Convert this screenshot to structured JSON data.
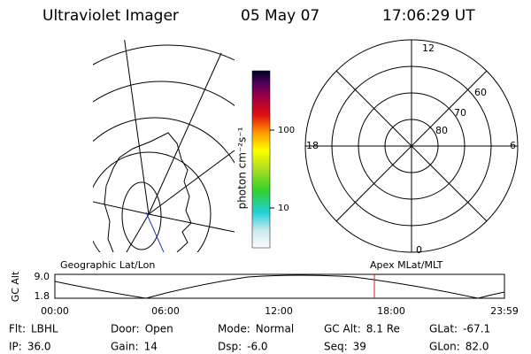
{
  "header": {
    "instrument": "Ultraviolet Imager",
    "date": "05 May 07",
    "time": "17:06:29 UT"
  },
  "colorbar": {
    "label": "photon cm⁻²s⁻¹",
    "ticks": [
      "100",
      "10"
    ]
  },
  "polar": {
    "labels": {
      "top": "12",
      "bottom": "0",
      "left": "18",
      "right": "6"
    },
    "rings": [
      "60",
      "70",
      "80"
    ]
  },
  "timeline": {
    "left_title": "Geographic Lat/Lon",
    "right_title": "Apex MLat/MLT",
    "y_label": "GC Alt",
    "y_ticks": [
      "9.0",
      "1.8"
    ],
    "x_ticks": [
      "00:00",
      "06:00",
      "12:00",
      "18:00",
      "23:59"
    ]
  },
  "info": [
    [
      {
        "label": "Flt:",
        "value": "LBHL"
      },
      {
        "label": "Door:",
        "value": "Open"
      },
      {
        "label": "Mode:",
        "value": "Normal"
      },
      {
        "label": "GC Alt:",
        "value": "8.1 Re"
      },
      {
        "label": "GLat:",
        "value": "-67.1"
      }
    ],
    [
      {
        "label": "IP:",
        "value": "36.0"
      },
      {
        "label": "Gain:",
        "value": "14"
      },
      {
        "label": "Dsp:",
        "value": "-6.0"
      },
      {
        "label": "Seq:",
        "value": "39"
      },
      {
        "label": "GLon:",
        "value": "82.0"
      }
    ]
  ]
}
